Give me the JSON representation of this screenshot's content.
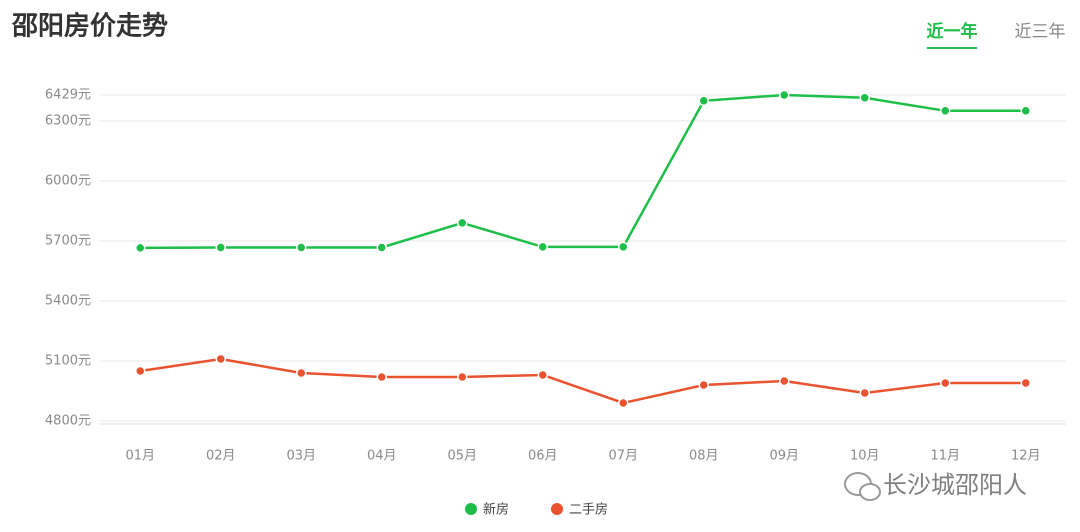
{
  "chart_data": {
    "type": "line",
    "title": "邵阳房价走势",
    "tabs": [
      "近一年",
      "近三年"
    ],
    "watermark": "长沙城邵阳人",
    "categories": [
      "01月",
      "02月",
      "03月",
      "04月",
      "05月",
      "06月",
      "07月",
      "08月",
      "09月",
      "10月",
      "11月",
      "12月"
    ],
    "series": [
      {
        "name": "新房",
        "color": "#1dbf48",
        "values": [
          5665,
          5667,
          5667,
          5667,
          5790,
          5670,
          5670,
          6400,
          6429,
          6415,
          6350,
          6350
        ]
      },
      {
        "name": "二手房",
        "color": "#e9532f",
        "values": [
          5050,
          5110,
          5040,
          5020,
          5020,
          5030,
          4890,
          4980,
          5000,
          4940,
          4990,
          4990
        ]
      }
    ],
    "ylim": [
      4800,
      6429
    ],
    "yticks": [
      {
        "value": 4800,
        "label": "4800元"
      },
      {
        "value": 5100,
        "label": "5100元"
      },
      {
        "value": 5400,
        "label": "5400元"
      },
      {
        "value": 5700,
        "label": "5700元"
      },
      {
        "value": 6000,
        "label": "6000元"
      },
      {
        "value": 6300,
        "label": "6300元"
      },
      {
        "value": 6429,
        "label": "6429元"
      }
    ],
    "grid": true
  }
}
